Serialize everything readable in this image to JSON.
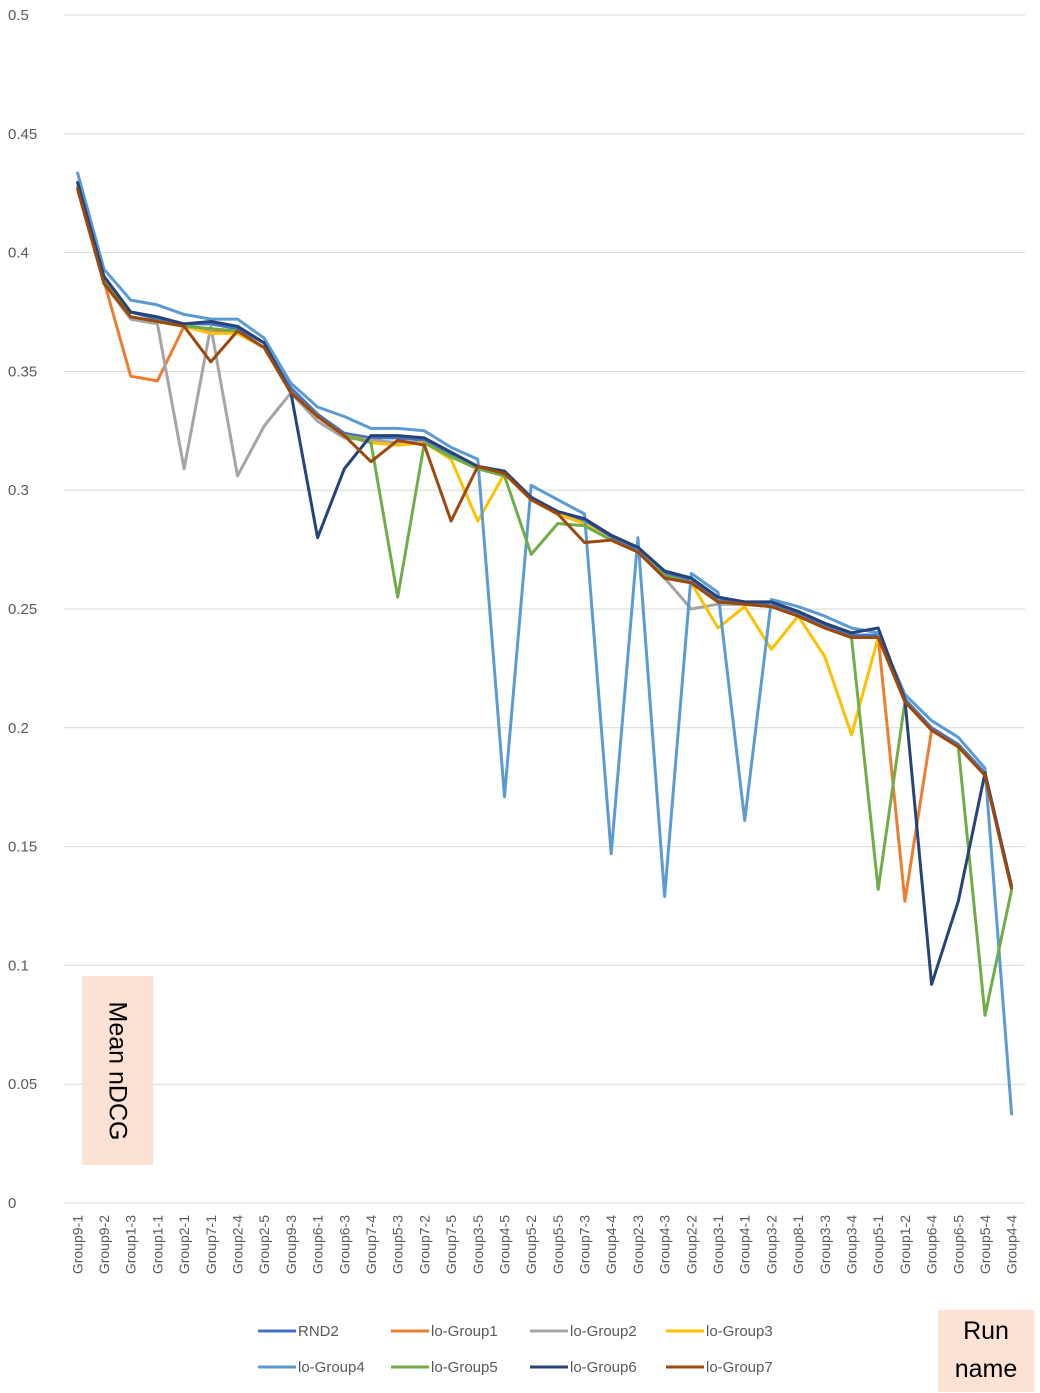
{
  "chart_data": {
    "type": "line",
    "title": "",
    "xlabel": "Run name",
    "ylabel": "Mean nDCG",
    "ylim": [
      0,
      0.5
    ],
    "yticks": [
      "0",
      "0.05",
      "0.1",
      "0.15",
      "0.2",
      "0.25",
      "0.3",
      "0.35",
      "0.4",
      "0.45",
      "0.5"
    ],
    "grid": "horizontal",
    "legend_position": "bottom",
    "categories": [
      "Group9-1",
      "Group9-2",
      "Group1-3",
      "Group1-1",
      "Group2-1",
      "Group7-1",
      "Group2-4",
      "Group2-5",
      "Group9-3",
      "Group6-1",
      "Group6-3",
      "Group7-4",
      "Group5-3",
      "Group7-2",
      "Group7-5",
      "Group3-5",
      "Group4-5",
      "Group5-2",
      "Group5-5",
      "Group7-3",
      "Group4-4",
      "Group2-3",
      "Group4-3",
      "Group2-2",
      "Group3-1",
      "Group4-1",
      "Group3-2",
      "Group8-1",
      "Group3-3",
      "Group3-4",
      "Group5-1",
      "Group1-2",
      "Group6-4",
      "Group6-5",
      "Group5-4",
      "Group4-4"
    ],
    "series": [
      {
        "name": "RND2",
        "color": "#4472c4",
        "values": [
          0.43,
          0.39,
          0.375,
          0.372,
          0.37,
          0.37,
          0.368,
          0.362,
          0.343,
          0.332,
          0.324,
          0.322,
          0.322,
          0.321,
          0.315,
          0.31,
          0.308,
          0.297,
          0.291,
          0.287,
          0.28,
          0.275,
          0.265,
          0.262,
          0.254,
          0.253,
          0.252,
          0.248,
          0.243,
          0.239,
          0.239,
          0.212,
          0.2,
          0.193,
          0.181,
          0.133
        ]
      },
      {
        "name": "lo-Group1",
        "color": "#ed7d31",
        "values": [
          0.428,
          0.388,
          0.348,
          0.346,
          0.369,
          0.367,
          0.366,
          0.36,
          0.341,
          0.331,
          0.323,
          0.321,
          0.32,
          0.32,
          0.314,
          0.309,
          0.307,
          0.296,
          0.29,
          0.286,
          0.279,
          0.274,
          0.264,
          0.261,
          0.253,
          0.252,
          0.251,
          0.247,
          0.242,
          0.238,
          0.238,
          0.127,
          0.199,
          0.192,
          0.18,
          0.132
        ]
      },
      {
        "name": "lo-Group2",
        "color": "#a5a5a5",
        "values": [
          0.428,
          0.387,
          0.372,
          0.37,
          0.309,
          0.369,
          0.306,
          0.327,
          0.341,
          0.329,
          0.322,
          0.321,
          0.32,
          0.32,
          0.314,
          0.309,
          0.307,
          0.296,
          0.29,
          0.286,
          0.279,
          0.274,
          0.263,
          0.25,
          0.252,
          0.252,
          0.251,
          0.247,
          0.242,
          0.238,
          0.238,
          0.211,
          0.199,
          0.192,
          0.18,
          0.132
        ]
      },
      {
        "name": "lo-Group3",
        "color": "#ffc000",
        "values": [
          0.428,
          0.388,
          0.373,
          0.371,
          0.369,
          0.366,
          0.366,
          0.36,
          0.341,
          0.331,
          0.323,
          0.32,
          0.319,
          0.32,
          0.313,
          0.287,
          0.307,
          0.296,
          0.29,
          0.286,
          0.279,
          0.274,
          0.264,
          0.261,
          0.242,
          0.251,
          0.233,
          0.247,
          0.23,
          0.197,
          0.238,
          0.211,
          0.199,
          0.192,
          0.18,
          0.132
        ]
      },
      {
        "name": "lo-Group4",
        "color": "#5b9bd5",
        "values": [
          0.434,
          0.393,
          0.38,
          0.378,
          0.374,
          0.372,
          0.372,
          0.364,
          0.345,
          0.335,
          0.331,
          0.326,
          0.326,
          0.325,
          0.318,
          0.313,
          0.171,
          0.302,
          0.296,
          0.29,
          0.147,
          0.28,
          0.129,
          0.265,
          0.257,
          0.161,
          0.254,
          0.251,
          0.247,
          0.242,
          0.24,
          0.214,
          0.203,
          0.196,
          0.183,
          0.037
        ]
      },
      {
        "name": "lo-Group5",
        "color": "#70ad47",
        "values": [
          0.428,
          0.388,
          0.373,
          0.371,
          0.369,
          0.368,
          0.367,
          0.36,
          0.341,
          0.331,
          0.323,
          0.32,
          0.255,
          0.32,
          0.314,
          0.309,
          0.306,
          0.273,
          0.286,
          0.285,
          0.279,
          0.274,
          0.264,
          0.261,
          0.253,
          0.252,
          0.251,
          0.247,
          0.242,
          0.238,
          0.132,
          0.211,
          0.199,
          0.192,
          0.079,
          0.132
        ]
      },
      {
        "name": "lo-Group6",
        "color": "#264478",
        "values": [
          0.43,
          0.39,
          0.375,
          0.373,
          0.37,
          0.371,
          0.369,
          0.362,
          0.341,
          0.28,
          0.309,
          0.323,
          0.323,
          0.322,
          0.316,
          0.31,
          0.308,
          0.297,
          0.291,
          0.288,
          0.281,
          0.276,
          0.266,
          0.263,
          0.255,
          0.253,
          0.253,
          0.249,
          0.244,
          0.24,
          0.242,
          0.212,
          0.092,
          0.127,
          0.181,
          0.133
        ]
      },
      {
        "name": "lo-Group7",
        "color": "#9e480e",
        "values": [
          0.427,
          0.387,
          0.373,
          0.371,
          0.369,
          0.354,
          0.367,
          0.36,
          0.341,
          0.331,
          0.323,
          0.312,
          0.321,
          0.319,
          0.287,
          0.31,
          0.307,
          0.296,
          0.29,
          0.278,
          0.279,
          0.274,
          0.263,
          0.261,
          0.253,
          0.252,
          0.251,
          0.247,
          0.242,
          0.238,
          0.238,
          0.211,
          0.199,
          0.192,
          0.18,
          0.132
        ]
      }
    ]
  }
}
